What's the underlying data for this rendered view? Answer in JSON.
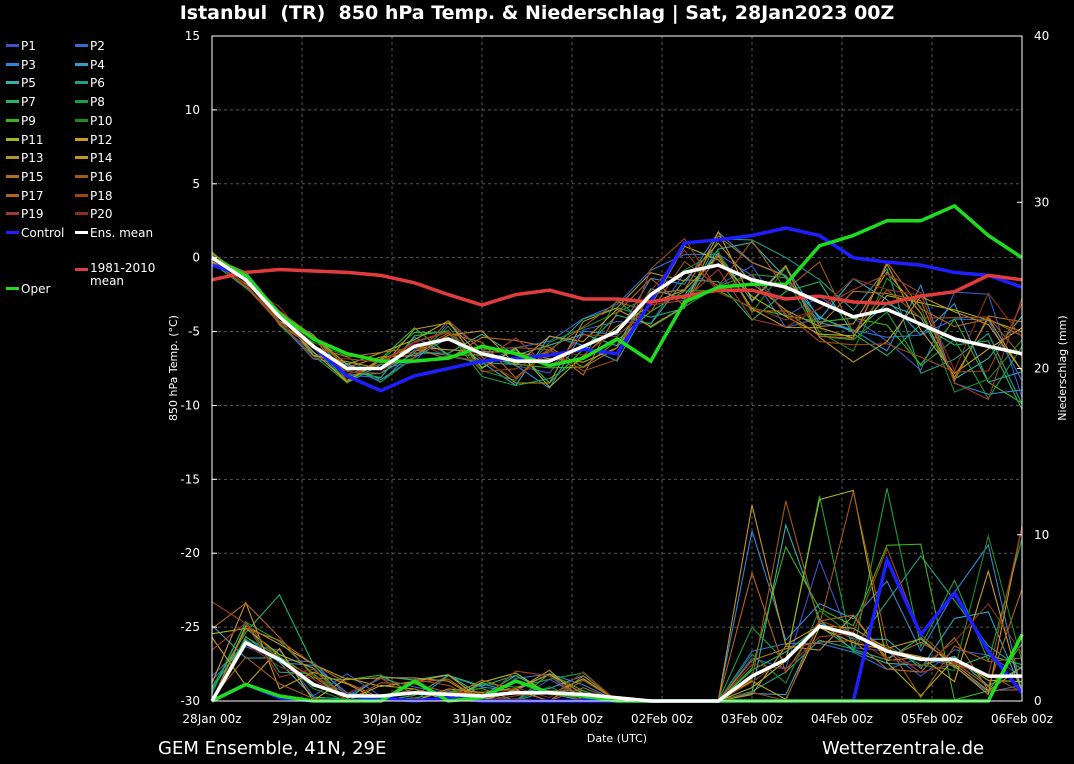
{
  "chart_data": {
    "type": "line",
    "title": "Istanbul  (TR)  850 hPa Temp. & Niederschlag | Sat, 28Jan2023 00Z",
    "ylabel": "850 hPa Temp. (°C)",
    "y2label": "Niederschlag (mm)",
    "xlabel": "Date (UTC)",
    "ylim": [
      -30,
      15
    ],
    "y2lim": [
      0,
      40
    ],
    "yticks": [
      15,
      10,
      5,
      0,
      -5,
      -10,
      -15,
      -20,
      -25,
      -30
    ],
    "y2ticks": [
      40,
      30,
      20,
      10,
      0
    ],
    "x_categories": [
      "28Jan 00z",
      "29Jan 00z",
      "30Jan 00z",
      "31Jan 00z",
      "01Feb 00z",
      "02Feb 00z",
      "03Feb 00z",
      "04Feb 00z",
      "05Feb 00z",
      "06Feb 00z"
    ],
    "grid": true,
    "legend_position": "left",
    "series": [
      {
        "name": "P1",
        "color": "#3a55c8"
      },
      {
        "name": "P2",
        "color": "#2f6bd0"
      },
      {
        "name": "P3",
        "color": "#2f86d8"
      },
      {
        "name": "P4",
        "color": "#2f9fc8"
      },
      {
        "name": "P5",
        "color": "#2fb2a8"
      },
      {
        "name": "P6",
        "color": "#1fa080"
      },
      {
        "name": "P7",
        "color": "#22b468"
      },
      {
        "name": "P8",
        "color": "#18a03a"
      },
      {
        "name": "P9",
        "color": "#3cb41e"
      },
      {
        "name": "P10",
        "color": "#1e8c1e"
      },
      {
        "name": "P11",
        "color": "#a8b41e"
      },
      {
        "name": "P12",
        "color": "#c8a01e"
      },
      {
        "name": "P13",
        "color": "#b49628"
      },
      {
        "name": "P14",
        "color": "#c8961e"
      },
      {
        "name": "P15",
        "color": "#b46e1e"
      },
      {
        "name": "P16",
        "color": "#a05a14"
      },
      {
        "name": "P17",
        "color": "#b4641e"
      },
      {
        "name": "P18",
        "color": "#a04614"
      },
      {
        "name": "P19",
        "color": "#a03c28"
      },
      {
        "name": "P20",
        "color": "#8c3214"
      },
      {
        "name": "Control",
        "color": "#1e1eff",
        "bold": true
      },
      {
        "name": "Ens. mean",
        "color": "#ffffff",
        "bold": true,
        "temp": [
          0,
          -1.5,
          -4,
          -6,
          -7.5,
          -7.5,
          -6,
          -5.5,
          -6.5,
          -7,
          -7,
          -6,
          -5,
          -2.5,
          -1,
          -0.5,
          -1.5,
          -2,
          -3,
          -4,
          -3.5,
          -4.5,
          -5.5,
          -6,
          -6.5
        ],
        "precip": [
          0,
          3.5,
          2.5,
          1,
          0.3,
          0.3,
          0.5,
          0.4,
          0.3,
          0.5,
          0.5,
          0.4,
          0.2,
          0,
          0,
          0,
          1.5,
          2.5,
          4.5,
          4,
          3,
          2.5,
          2.5,
          1.5,
          1.5
        ]
      },
      {
        "name": "1981-2010 mean",
        "color": "#e03c3c",
        "bold": true,
        "temp": [
          -1.5,
          -1,
          -0.8,
          -0.9,
          -1,
          -1.2,
          -1.7,
          -2.5,
          -3.2,
          -2.5,
          -2.2,
          -2.8,
          -2.8,
          -3,
          -2.6,
          -2.2,
          -2.2,
          -2.8,
          -2.6,
          -3,
          -3.1,
          -2.6,
          -2.3,
          -1.2,
          -1.5
        ]
      },
      {
        "name": "Oper",
        "color": "#1edc1e",
        "bold": true,
        "temp": [
          0,
          -1.2,
          -3.8,
          -5.5,
          -6.5,
          -7,
          -7,
          -6.8,
          -6,
          -6.5,
          -7.3,
          -6.8,
          -5.5,
          -7,
          -3,
          -2,
          -1.8,
          -1.8,
          0.8,
          1.5,
          2.5,
          2.5,
          3.5,
          1.5,
          0
        ],
        "precip": [
          0,
          1,
          0.3,
          0,
          0,
          0,
          1.2,
          0,
          0.2,
          1.2,
          0.5,
          0.3,
          0,
          0,
          0,
          0,
          0,
          0,
          0,
          0,
          0,
          0,
          0,
          0,
          4
        ]
      }
    ]
  },
  "footer": {
    "left": "GEM Ensemble, 41N, 29E",
    "right": "Wetterzentrale.de"
  }
}
